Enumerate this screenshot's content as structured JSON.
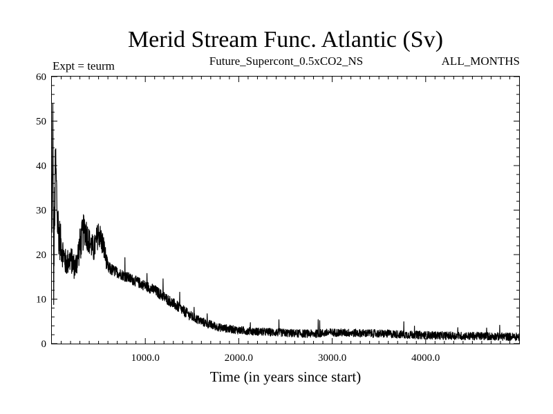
{
  "chart_data": {
    "type": "line",
    "title": "Merid Stream Func. Atlantic (Sv)",
    "subtitle_left": "Expt = teurm",
    "subtitle_center": "Future_Supercont_0.5xCO2_NS",
    "subtitle_right": "ALL_MONTHS",
    "xlabel": "Time (in years since start)",
    "ylabel": "",
    "xlim": [
      0,
      5000
    ],
    "ylim": [
      0,
      60
    ],
    "x_ticks": [
      1000,
      2000,
      3000,
      4000
    ],
    "x_tick_labels": [
      "1000.0",
      "2000.0",
      "3000.0",
      "4000.0"
    ],
    "y_ticks": [
      0,
      10,
      20,
      30,
      40,
      50,
      60
    ],
    "y_tick_labels": [
      "0",
      "10",
      "20",
      "30",
      "40",
      "50",
      "60"
    ],
    "grid": false,
    "line_color": "#000000",
    "series": [
      {
        "name": "",
        "x": [
          0,
          10,
          20,
          30,
          40,
          60,
          80,
          100,
          150,
          200,
          250,
          300,
          350,
          400,
          450,
          500,
          550,
          600,
          700,
          800,
          900,
          1000,
          1100,
          1200,
          1300,
          1400,
          1500,
          1600,
          1700,
          1800,
          1900,
          2000,
          2200,
          2400,
          2600,
          2800,
          3000,
          3200,
          3400,
          3600,
          3800,
          4000,
          4200,
          4400,
          4600,
          4800,
          5000
        ],
        "y": [
          24,
          52,
          15,
          30,
          40,
          28,
          24,
          22,
          18,
          19,
          17,
          22,
          26,
          23,
          21,
          25,
          22,
          17,
          16,
          15,
          14,
          13,
          12,
          10.5,
          9,
          7.5,
          6,
          5,
          4.2,
          3.6,
          3.3,
          3.0,
          2.7,
          2.5,
          2.3,
          2.2,
          2.5,
          2.4,
          2.3,
          2.2,
          2.0,
          1.9,
          1.8,
          1.7,
          1.7,
          1.6,
          1.5
        ],
        "noise": [
          3,
          4,
          8,
          8,
          8,
          6,
          5,
          4,
          3,
          3,
          3,
          4,
          4,
          3,
          3,
          3,
          3,
          1.5,
          1.2,
          1.2,
          1.2,
          1.2,
          1.2,
          1.2,
          1.2,
          1.2,
          1.1,
          1.0,
          1.0,
          0.9,
          0.9,
          0.9,
          0.9,
          0.9,
          0.9,
          0.9,
          0.9,
          0.9,
          0.9,
          0.9,
          0.9,
          0.9,
          0.9,
          0.9,
          0.9,
          0.9,
          0.9
        ]
      }
    ]
  }
}
